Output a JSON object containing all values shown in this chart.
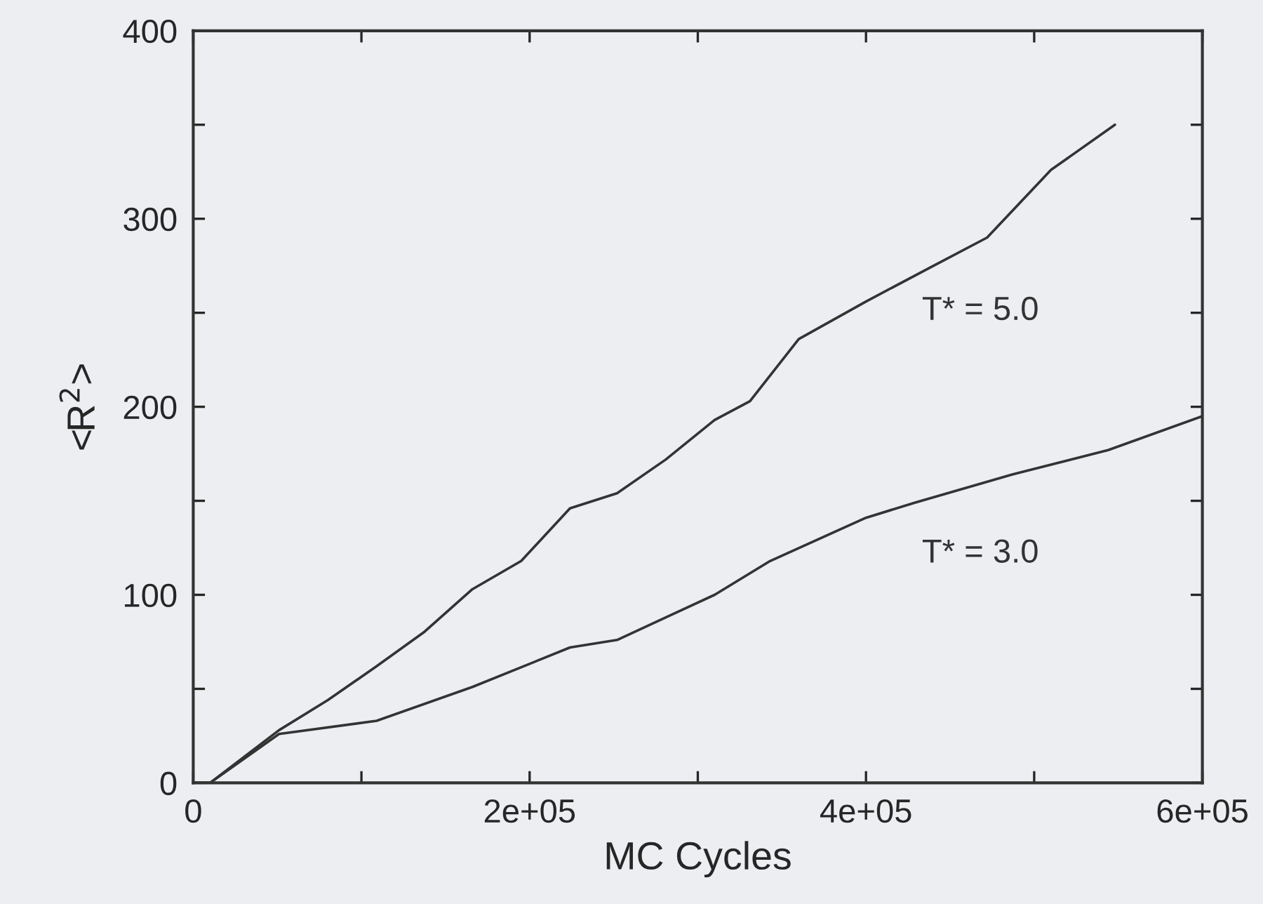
{
  "chart_data": {
    "type": "line",
    "xlabel": "MC Cycles",
    "ylabel": "<R$^{2}$>",
    "xlim": [
      0,
      600000
    ],
    "ylim": [
      0,
      400
    ],
    "xticks": [
      {
        "value": 0,
        "label": "0"
      },
      {
        "value": 100000,
        "label": null
      },
      {
        "value": 200000,
        "label": "2e+05"
      },
      {
        "value": 300000,
        "label": null
      },
      {
        "value": 400000,
        "label": "4e+05"
      },
      {
        "value": 500000,
        "label": null
      },
      {
        "value": 600000,
        "label": "6e+05"
      }
    ],
    "yticks": [
      0,
      {
        "value": 50,
        "label": null
      },
      100,
      {
        "value": 150,
        "label": null
      },
      200,
      {
        "value": 250,
        "label": null
      },
      300,
      {
        "value": 350,
        "label": null
      },
      400
    ],
    "grid": false,
    "legend": false,
    "series": [
      {
        "name": "T* = 5.0",
        "color": "#333333",
        "x": [
          0,
          10000,
          51000,
          80000,
          109000,
          137000,
          166000,
          195000,
          224000,
          252000,
          281000,
          310000,
          331000,
          360000,
          400000,
          438000,
          472000,
          510000,
          548000
        ],
        "values": [
          0,
          0,
          28,
          44,
          62,
          80,
          103,
          118,
          146,
          154,
          172,
          193,
          203,
          236,
          256,
          274,
          290,
          326,
          350
        ]
      },
      {
        "name": "T* = 3.0",
        "color": "#333333",
        "x": [
          0,
          10000,
          51000,
          109000,
          166000,
          224000,
          252000,
          281000,
          310000,
          343000,
          400000,
          429000,
          487000,
          544000,
          600000
        ],
        "values": [
          0,
          0,
          26,
          33,
          51,
          72,
          76,
          88,
          100,
          118,
          141,
          149,
          164,
          177,
          195
        ]
      }
    ]
  }
}
